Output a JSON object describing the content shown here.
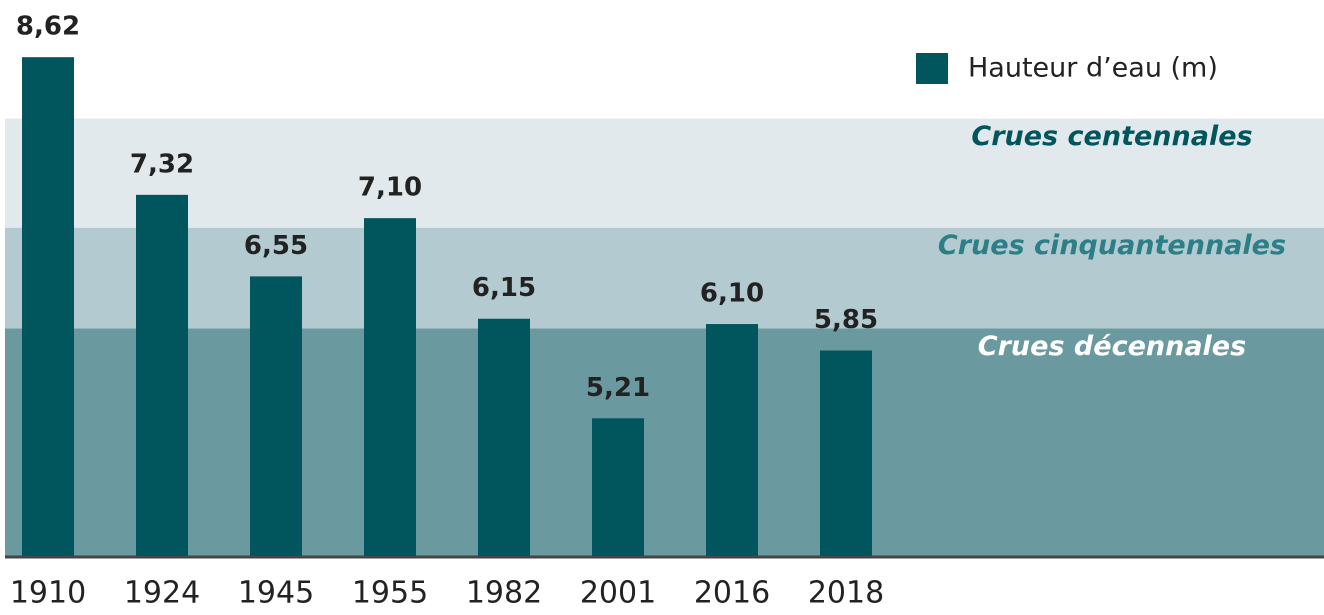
{
  "chart_data": {
    "type": "bar",
    "categories": [
      "1910",
      "1924",
      "1945",
      "1955",
      "1982",
      "2001",
      "2016",
      "2018"
    ],
    "series": [
      {
        "name": "Hauteur d’eau (m)",
        "color": "#00565c",
        "values": [
          8.62,
          7.32,
          6.55,
          7.1,
          6.15,
          5.21,
          6.1,
          5.85
        ],
        "value_labels": [
          "8,62",
          "7,32",
          "6,55",
          "7,10",
          "6,15",
          "5,21",
          "6,10",
          "5,85"
        ]
      }
    ],
    "bands": [
      {
        "label": "Crues décennales",
        "from": 3.9,
        "to": 6.06,
        "color": "#6a9aa0",
        "label_color": "#ffffff"
      },
      {
        "label": "Crues cinquantennales",
        "from": 6.06,
        "to": 7.01,
        "color": "#b3cbd0",
        "label_color": "#2d7f87"
      },
      {
        "label": "Crues centennales",
        "from": 7.01,
        "to": 8.04,
        "color": "#e1e9ec",
        "label_color": "#00565c"
      }
    ],
    "ylim": [
      3.9,
      9.16
    ],
    "legend": "top-right"
  }
}
